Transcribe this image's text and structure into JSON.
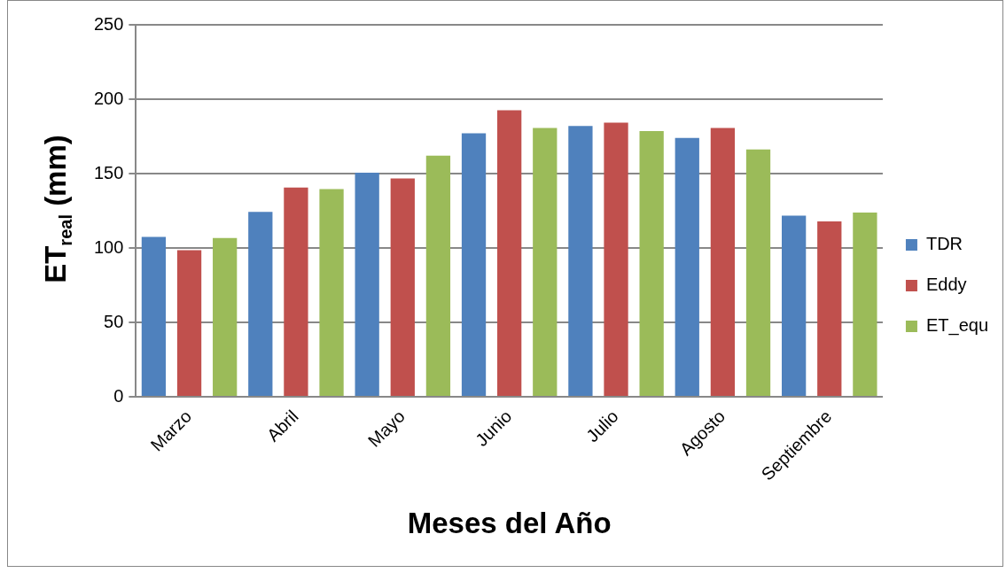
{
  "chart_data": {
    "type": "bar",
    "xlabel": "Meses del Año",
    "ylabel": "ET$_{real}$ (mm)",
    "categories": [
      "Marzo",
      "Abril",
      "Mayo",
      "Junio",
      "Julio",
      "Agosto",
      "Septiembre"
    ],
    "series": [
      {
        "name": "TDR",
        "color": "#4f81bd",
        "values": [
          107.5,
          124.3,
          150.6,
          177.1,
          182.0,
          174.0,
          121.7
        ]
      },
      {
        "name": "Eddy",
        "color": "#c0504d",
        "values": [
          98.6,
          140.6,
          146.8,
          192.6,
          184.3,
          180.6,
          117.9
        ]
      },
      {
        "name": "ET_equ",
        "color": "#9bbb59",
        "values": [
          106.7,
          139.6,
          162.1,
          180.6,
          178.6,
          166.2,
          123.8
        ]
      }
    ],
    "ylim": [
      0,
      250
    ],
    "yticks": [
      0,
      50,
      100,
      150,
      200,
      250
    ],
    "grid": "y",
    "legend": "right"
  }
}
